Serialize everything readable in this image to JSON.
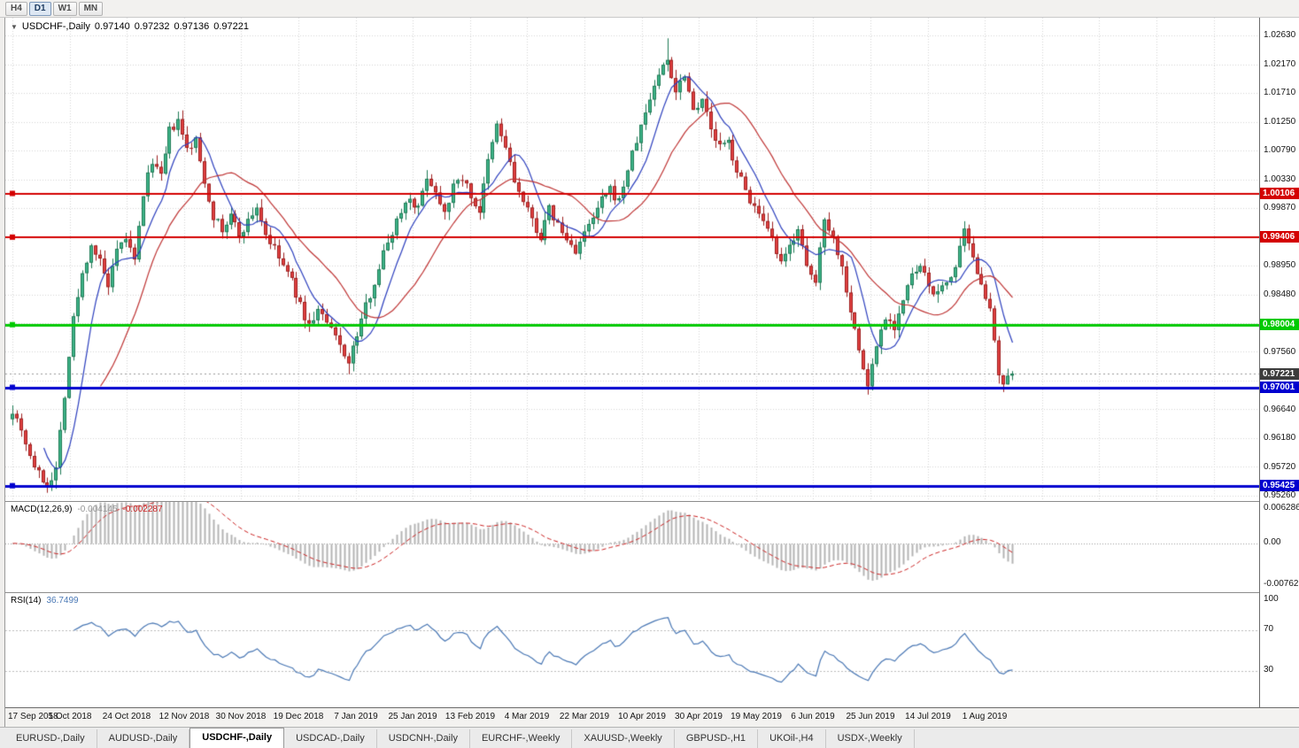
{
  "toolbar": {
    "timeframes": [
      "H4",
      "D1",
      "W1",
      "MN"
    ],
    "active_timeframe": "D1"
  },
  "chart": {
    "symbol_label": "USDCHF-,Daily",
    "open": "0.97140",
    "high": "0.97232",
    "low": "0.97136",
    "close": "0.97221"
  },
  "macd": {
    "label": "MACD(12,26,9)",
    "value_main": "-0.004145",
    "value_signal": "-0.002287",
    "axis_labels": [
      "0.006286",
      "0.00",
      "-0.00762"
    ],
    "axis_values": [
      0.006286,
      0.0,
      -0.00762
    ]
  },
  "rsi": {
    "label": "RSI(14)",
    "value": "36.7499",
    "axis_labels": [
      "100",
      "70",
      "30"
    ],
    "axis_values": [
      100,
      70,
      30
    ]
  },
  "price_axis": {
    "labels": [
      {
        "text": "1.02630",
        "value": 1.0263
      },
      {
        "text": "1.02170",
        "value": 1.0217
      },
      {
        "text": "1.01710",
        "value": 1.0171
      },
      {
        "text": "1.01250",
        "value": 1.0125
      },
      {
        "text": "1.00790",
        "value": 1.0079
      },
      {
        "text": "1.00330",
        "value": 1.0033
      },
      {
        "text": "0.99870",
        "value": 0.9987
      },
      {
        "text": "0.98950",
        "value": 0.9895
      },
      {
        "text": "0.98480",
        "value": 0.9848
      },
      {
        "text": "0.97560",
        "value": 0.9756
      },
      {
        "text": "0.96640",
        "value": 0.9664
      },
      {
        "text": "0.96180",
        "value": 0.9618
      },
      {
        "text": "0.95720",
        "value": 0.9572
      },
      {
        "text": "0.95260",
        "value": 0.9526
      }
    ]
  },
  "levels": [
    {
      "label": "1.00106",
      "value": 1.00106,
      "color": "#d40000",
      "width": 2
    },
    {
      "label": "0.99406",
      "value": 0.99406,
      "color": "#d40000",
      "width": 2
    },
    {
      "label": "0.98004",
      "value": 0.98004,
      "color": "#00ca00",
      "width": 3
    },
    {
      "label": "0.97001",
      "value": 0.97001,
      "color": "#0000cf",
      "width": 3
    },
    {
      "label": "0.95425",
      "value": 0.95425,
      "color": "#0000cf",
      "width": 3
    }
  ],
  "current_price": {
    "label": "0.97221",
    "value": 0.97221,
    "badge_color": "#3c3c3c"
  },
  "dates": [
    "17 Sep 2018",
    "5 Oct 2018",
    "24 Oct 2018",
    "12 Nov 2018",
    "30 Nov 2018",
    "19 Dec 2018",
    "7 Jan 2019",
    "25 Jan 2019",
    "13 Feb 2019",
    "4 Mar 2019",
    "22 Mar 2019",
    "10 Apr 2019",
    "30 Apr 2019",
    "19 May 2019",
    "6 Jun 2019",
    "25 Jun 2019",
    "14 Jul 2019",
    "1 Aug 2019"
  ],
  "tabs": {
    "items": [
      "EURUSD-,Daily",
      "AUDUSD-,Daily",
      "USDCHF-,Daily",
      "USDCAD-,Daily",
      "USDCNH-,Daily",
      "EURCHF-,Weekly",
      "XAUUSD-,Weekly",
      "GBPUSD-,H1",
      "UKOil-,H4",
      "USDX-,Weekly"
    ],
    "active": "USDCHF-,Daily"
  },
  "colors": {
    "bull_fill": "#3eb489",
    "bull_edge": "#1e7a55",
    "bear_fill": "#e04040",
    "bear_edge": "#9e1f1f",
    "ma_fast": "#2c3fbe",
    "ma_slow": "#bf3434",
    "grid": "#d6d6d6",
    "macd_hist": "#b4b4b4",
    "macd_signal": "#cc2222",
    "rsi_line": "#4a78b5",
    "current_price_line": "#9a9a9a"
  },
  "chart_data": {
    "type": "candlestick",
    "symbol": "USDCHF",
    "timeframe": "Daily",
    "title": "USDCHF-,Daily  O 0.97140  H 0.97232  L 0.97136  C 0.97221",
    "ylim": [
      0.9518,
      1.0292
    ],
    "bars": 230,
    "bar_x0": 8,
    "bar_dx": 4.93,
    "tick_x0": 8,
    "tick_dx": 64.6,
    "price_grid": {
      "start": 1.0263,
      "step": 0.0046,
      "count": 17
    },
    "current_price": 0.97221,
    "generation": "OHLC series reconstructed by piecewise-linear interpolation of close_anchors plus deterministic noise (seed 7)",
    "close_anchors": [
      [
        0,
        0.9665
      ],
      [
        2,
        0.9635
      ],
      [
        4,
        0.959
      ],
      [
        6,
        0.956
      ],
      [
        8,
        0.9545
      ],
      [
        10,
        0.957
      ],
      [
        12,
        0.969
      ],
      [
        14,
        0.981
      ],
      [
        16,
        0.988
      ],
      [
        18,
        0.993
      ],
      [
        20,
        0.99
      ],
      [
        22,
        0.986
      ],
      [
        24,
        0.9915
      ],
      [
        26,
        0.994
      ],
      [
        28,
        0.99
      ],
      [
        30,
        1.001
      ],
      [
        32,
        1.0065
      ],
      [
        34,
        1.0035
      ],
      [
        36,
        1.011
      ],
      [
        38,
        1.0125
      ],
      [
        40,
        1.008
      ],
      [
        42,
        1.0095
      ],
      [
        44,
        1.003
      ],
      [
        46,
        0.9975
      ],
      [
        48,
        0.995
      ],
      [
        50,
        0.9975
      ],
      [
        52,
        0.9945
      ],
      [
        54,
        0.9965
      ],
      [
        56,
        0.999
      ],
      [
        58,
        0.9945
      ],
      [
        60,
        0.992
      ],
      [
        62,
        0.9895
      ],
      [
        64,
        0.987
      ],
      [
        66,
        0.983
      ],
      [
        68,
        0.9798
      ],
      [
        70,
        0.9825
      ],
      [
        72,
        0.9802
      ],
      [
        74,
        0.978
      ],
      [
        76,
        0.9755
      ],
      [
        77,
        0.9738
      ],
      [
        79,
        0.9785
      ],
      [
        81,
        0.983
      ],
      [
        83,
        0.987
      ],
      [
        85,
        0.9915
      ],
      [
        87,
        0.995
      ],
      [
        89,
        0.9985
      ],
      [
        91,
        1.0005
      ],
      [
        93,
        0.9985
      ],
      [
        95,
        1.004
      ],
      [
        97,
        1.0012
      ],
      [
        99,
        0.9985
      ],
      [
        101,
        1.002
      ],
      [
        103,
        1.0038
      ],
      [
        105,
        1.0005
      ],
      [
        107,
        0.9982
      ],
      [
        109,
        1.006
      ],
      [
        111,
        1.012
      ],
      [
        113,
        1.0085
      ],
      [
        115,
        1.003
      ],
      [
        117,
        0.9995
      ],
      [
        119,
        0.9968
      ],
      [
        121,
        0.994
      ],
      [
        123,
        0.9985
      ],
      [
        125,
        0.996
      ],
      [
        127,
        0.9935
      ],
      [
        129,
        0.992
      ],
      [
        131,
        0.9945
      ],
      [
        133,
        0.997
      ],
      [
        135,
        1.0
      ],
      [
        137,
        1.0015
      ],
      [
        139,
        0.9998
      ],
      [
        141,
        1.005
      ],
      [
        143,
        1.0095
      ],
      [
        145,
        1.014
      ],
      [
        147,
        1.0185
      ],
      [
        149,
        1.0215
      ],
      [
        150,
        1.0226
      ],
      [
        152,
        1.0175
      ],
      [
        154,
        1.0205
      ],
      [
        156,
        1.0145
      ],
      [
        158,
        1.0165
      ],
      [
        160,
        1.011
      ],
      [
        162,
        1.0085
      ],
      [
        164,
        1.0092
      ],
      [
        166,
        1.0048
      ],
      [
        168,
        1.0015
      ],
      [
        170,
        0.9988
      ],
      [
        172,
        0.996
      ],
      [
        174,
        0.9935
      ],
      [
        176,
        0.9895
      ],
      [
        178,
        0.9925
      ],
      [
        180,
        0.9958
      ],
      [
        182,
        0.9888
      ],
      [
        184,
        0.9868
      ],
      [
        186,
        0.9975
      ],
      [
        188,
        0.994
      ],
      [
        190,
        0.9892
      ],
      [
        192,
        0.9825
      ],
      [
        194,
        0.9758
      ],
      [
        196,
        0.9702
      ],
      [
        198,
        0.9768
      ],
      [
        200,
        0.9815
      ],
      [
        202,
        0.9798
      ],
      [
        204,
        0.984
      ],
      [
        206,
        0.9878
      ],
      [
        208,
        0.9892
      ],
      [
        210,
        0.9862
      ],
      [
        212,
        0.9848
      ],
      [
        214,
        0.987
      ],
      [
        216,
        0.9892
      ],
      [
        218,
        0.9948
      ],
      [
        220,
        0.9902
      ],
      [
        222,
        0.9872
      ],
      [
        224,
        0.982
      ],
      [
        225,
        0.9768
      ],
      [
        226,
        0.9718
      ],
      [
        227,
        0.97
      ],
      [
        228,
        0.9712
      ],
      [
        229,
        0.97221
      ]
    ],
    "wick_events": [
      {
        "index": 8,
        "low": 0.9542
      },
      {
        "index": 77,
        "low": 0.9721
      },
      {
        "index": 150,
        "high": 1.0259
      },
      {
        "index": 196,
        "low": 0.9693
      },
      {
        "index": 227,
        "low": 0.9695
      }
    ],
    "moving_averages": [
      {
        "name": "fast",
        "period": 8
      },
      {
        "name": "slow",
        "period": 21
      }
    ],
    "indicators": [
      {
        "name": "MACD",
        "params": [
          12,
          26,
          9
        ],
        "panel_range": [
          -0.009,
          0.0075
        ]
      },
      {
        "name": "RSI",
        "params": [
          14
        ],
        "panel_range": [
          0,
          100
        ],
        "guides": [
          70,
          30
        ]
      }
    ]
  }
}
